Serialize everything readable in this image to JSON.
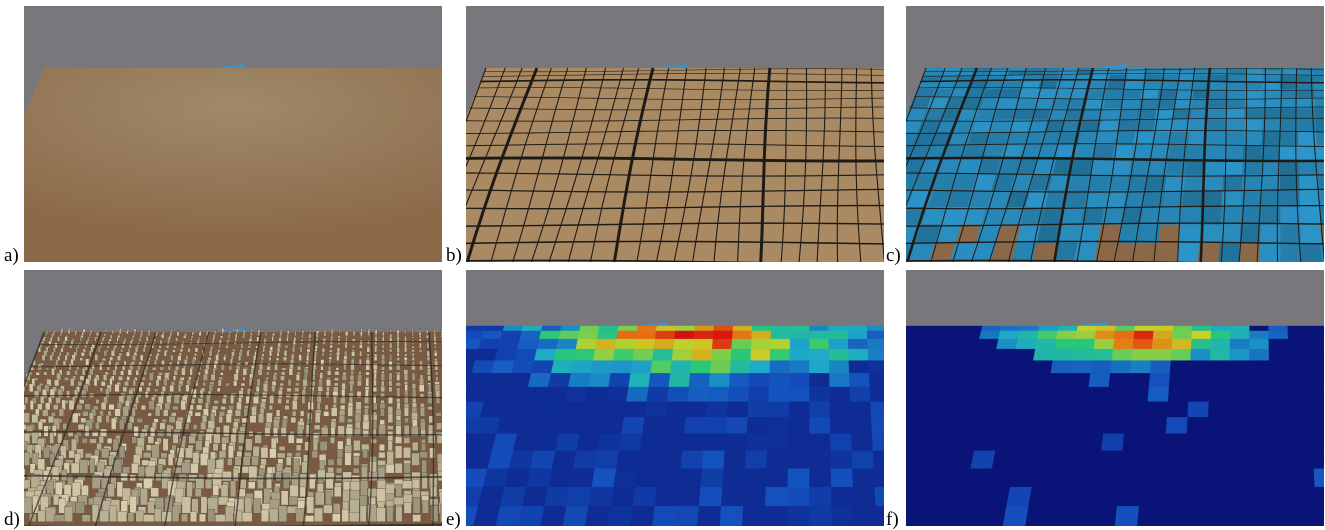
{
  "figure": {
    "panels": [
      {
        "label": "a)",
        "content": "terrain"
      },
      {
        "label": "b)",
        "content": "road-network"
      },
      {
        "label": "c)",
        "content": "parcels"
      },
      {
        "label": "d)",
        "content": "buildings"
      },
      {
        "label": "e)",
        "content": "density-heatmap"
      },
      {
        "label": "f)",
        "content": "sparse-heatmap"
      }
    ]
  },
  "colors": {
    "sky": "#78777b",
    "terrain": "#8a6848",
    "road": "#1e1b17",
    "parcel": "#2a86b0",
    "building": "#bdb497",
    "water": "#3f8fc9",
    "heat_low": "#0a1478",
    "heat_high": "#d41010"
  }
}
